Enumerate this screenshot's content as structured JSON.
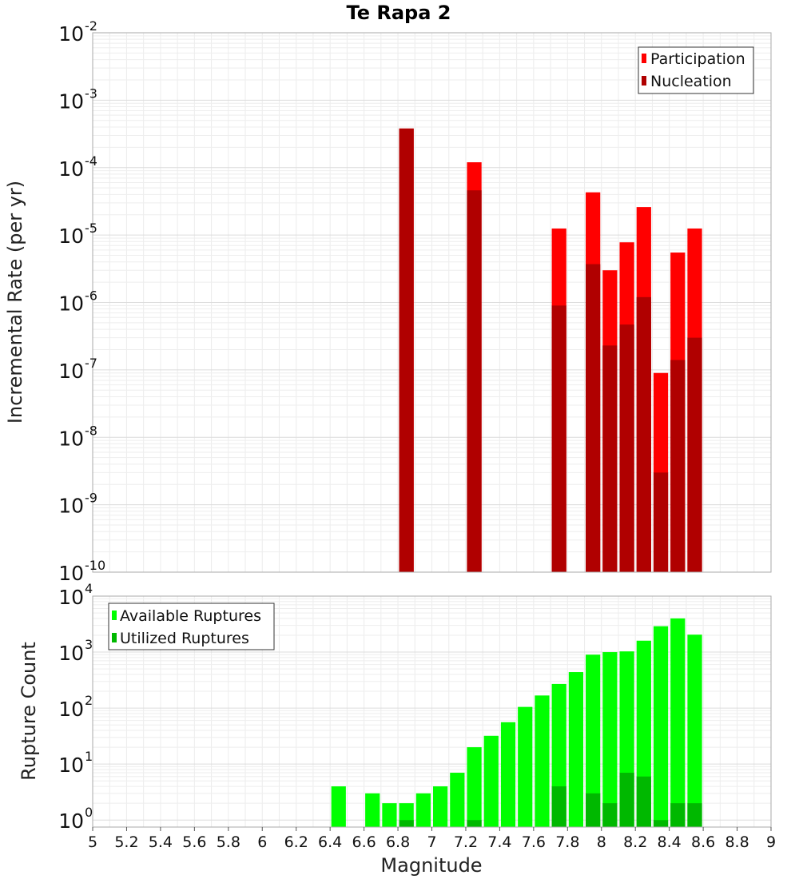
{
  "title": "Te Rapa 2",
  "chart_data": [
    {
      "type": "bar",
      "ylabel": "Incremental Rate (per yr)",
      "yscale": "log",
      "ylim": [
        1e-10,
        0.01
      ],
      "xlim": [
        5,
        9
      ],
      "bin_width": 0.1,
      "grid": true,
      "legend_position": "top-right",
      "series": [
        {
          "name": "Participation",
          "color": "#ff0000",
          "x": [
            6.85,
            7.25,
            7.75,
            7.95,
            8.05,
            8.15,
            8.25,
            8.35,
            8.45,
            8.55
          ],
          "values": [
            0.00038,
            0.00012,
            1.25e-05,
            4.3e-05,
            3e-06,
            7.8e-06,
            2.6e-05,
            9e-08,
            5.5e-06,
            1.25e-05
          ]
        },
        {
          "name": "Nucleation",
          "color": "#b00000",
          "x": [
            6.85,
            7.25,
            7.75,
            7.95,
            8.05,
            8.15,
            8.25,
            8.35,
            8.45,
            8.55
          ],
          "values": [
            0.00038,
            4.6e-05,
            9e-07,
            3.7e-06,
            2.3e-07,
            4.7e-07,
            1.2e-06,
            3e-09,
            1.4e-07,
            3e-07
          ]
        }
      ]
    },
    {
      "type": "bar",
      "xlabel": "Magnitude",
      "ylabel": "Rupture Count",
      "yscale": "log",
      "ylim": [
        0.75,
        10000
      ],
      "xlim": [
        5,
        9
      ],
      "bin_width": 0.1,
      "grid": true,
      "legend_position": "top-left",
      "x_ticks": [
        "5",
        "5.2",
        "5.4",
        "5.6",
        "5.8",
        "6",
        "6.2",
        "6.4",
        "6.6",
        "6.8",
        "7",
        "7.2",
        "7.4",
        "7.6",
        "7.8",
        "8",
        "8.2",
        "8.4",
        "8.6",
        "8.8",
        "9"
      ],
      "series": [
        {
          "name": "Available Ruptures",
          "color": "#00ff00",
          "x": [
            6.45,
            6.65,
            6.75,
            6.85,
            6.95,
            7.05,
            7.15,
            7.25,
            7.35,
            7.45,
            7.55,
            7.65,
            7.75,
            7.85,
            7.95,
            8.05,
            8.15,
            8.25,
            8.35,
            8.45,
            8.55
          ],
          "values": [
            4,
            3,
            2,
            2,
            3,
            4,
            7,
            20,
            32,
            56,
            105,
            168,
            270,
            440,
            900,
            1000,
            1030,
            1600,
            2900,
            4000,
            2050
          ]
        },
        {
          "name": "Utilized Ruptures",
          "color": "#00b800",
          "x": [
            6.85,
            7.25,
            7.75,
            7.95,
            8.05,
            8.15,
            8.25,
            8.35,
            8.45,
            8.55
          ],
          "values": [
            1,
            1,
            4,
            3,
            2,
            7,
            6,
            1,
            2,
            2
          ]
        }
      ]
    }
  ]
}
